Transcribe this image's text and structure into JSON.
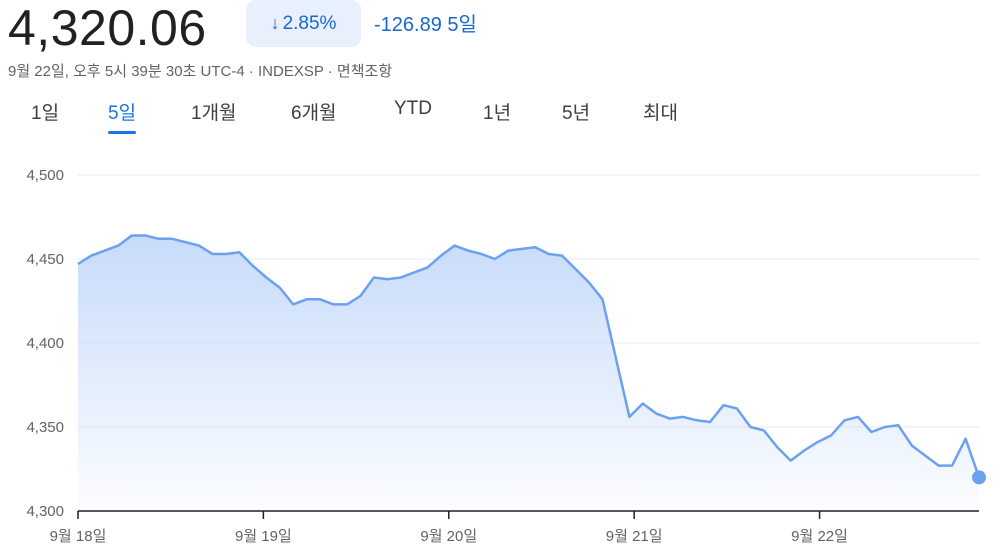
{
  "header": {
    "price": "4,320.06",
    "change_pct": "2.85%",
    "change_abs": "-126.89",
    "range_label": "5일",
    "meta": "9월 22일, 오후 5시 39분 30초 UTC-4 · INDEXSP · 면책조항",
    "accent_color": "#1967d2"
  },
  "tabs": [
    {
      "label": "1일",
      "active": false
    },
    {
      "label": "5일",
      "active": true
    },
    {
      "label": "1개월",
      "active": false
    },
    {
      "label": "6개월",
      "active": false
    },
    {
      "label": "YTD",
      "active": false
    },
    {
      "label": "1년",
      "active": false
    },
    {
      "label": "5년",
      "active": false
    },
    {
      "label": "최대",
      "active": false
    }
  ],
  "chart_data": {
    "type": "area",
    "ylim": [
      4300,
      4500
    ],
    "yticks": [
      4500,
      4450,
      4400,
      4350,
      4300
    ],
    "ytick_labels": [
      "4,500",
      "4,450",
      "4,400",
      "4,350",
      "4,300"
    ],
    "x_tick_labels": [
      "9월 18일",
      "9월 19일",
      "9월 20일",
      "9월 21일",
      "9월 22일"
    ],
    "grid": true,
    "line_color": "#6ba1ee",
    "fill_color": "#cfe0fa",
    "values": [
      4447,
      4452,
      4455,
      4458,
      4464,
      4464,
      4462,
      4462,
      4460,
      4458,
      4453,
      4453,
      4454,
      4446,
      4439,
      4433,
      4423,
      4426,
      4426,
      4423,
      4423,
      4428,
      4439,
      4438,
      4439,
      4442,
      4445,
      4452,
      4458,
      4455,
      4453,
      4450,
      4455,
      4456,
      4457,
      4453,
      4452,
      4444,
      4436,
      4426,
      4391,
      4356,
      4364,
      4358,
      4355,
      4356,
      4354,
      4353,
      4363,
      4361,
      4350,
      4348,
      4338,
      4330,
      4336,
      4341,
      4345,
      4354,
      4356,
      4347,
      4350,
      4351,
      4339,
      4333,
      4327,
      4327,
      4343,
      4320
    ]
  }
}
